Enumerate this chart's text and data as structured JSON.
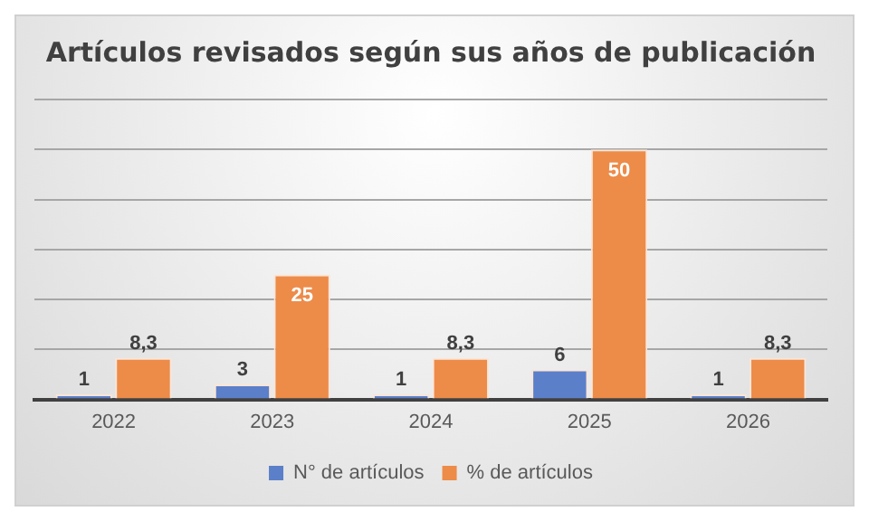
{
  "chart_data": {
    "type": "bar",
    "title": "Artículos revisados según sus años de publicación",
    "categories": [
      "2022",
      "2023",
      "2024",
      "2025",
      "2026"
    ],
    "series": [
      {
        "name": "N° de artículos",
        "color": "#5b7fc9",
        "values": [
          1,
          3,
          1,
          6,
          1
        ],
        "value_labels": [
          "1",
          "3",
          "1",
          "6",
          "1"
        ]
      },
      {
        "name": "% de artículos",
        "color": "#ed8b49",
        "values": [
          8.3,
          25,
          8.3,
          50,
          8.3
        ],
        "value_labels": [
          "8,3",
          "25",
          "8,3",
          "50",
          "8,3"
        ]
      }
    ],
    "ylim": [
      0,
      60
    ],
    "yticks": [
      {
        "value": 0,
        "label": null
      },
      {
        "value": 10,
        "label": null
      },
      {
        "value": 20,
        "label": null
      },
      {
        "value": 30,
        "label": null
      },
      {
        "value": 40,
        "label": null
      },
      {
        "value": 50,
        "label": null
      },
      {
        "value": 60,
        "label": null
      }
    ],
    "tick_labels": "x",
    "grid": "y",
    "legend": "bottom"
  }
}
